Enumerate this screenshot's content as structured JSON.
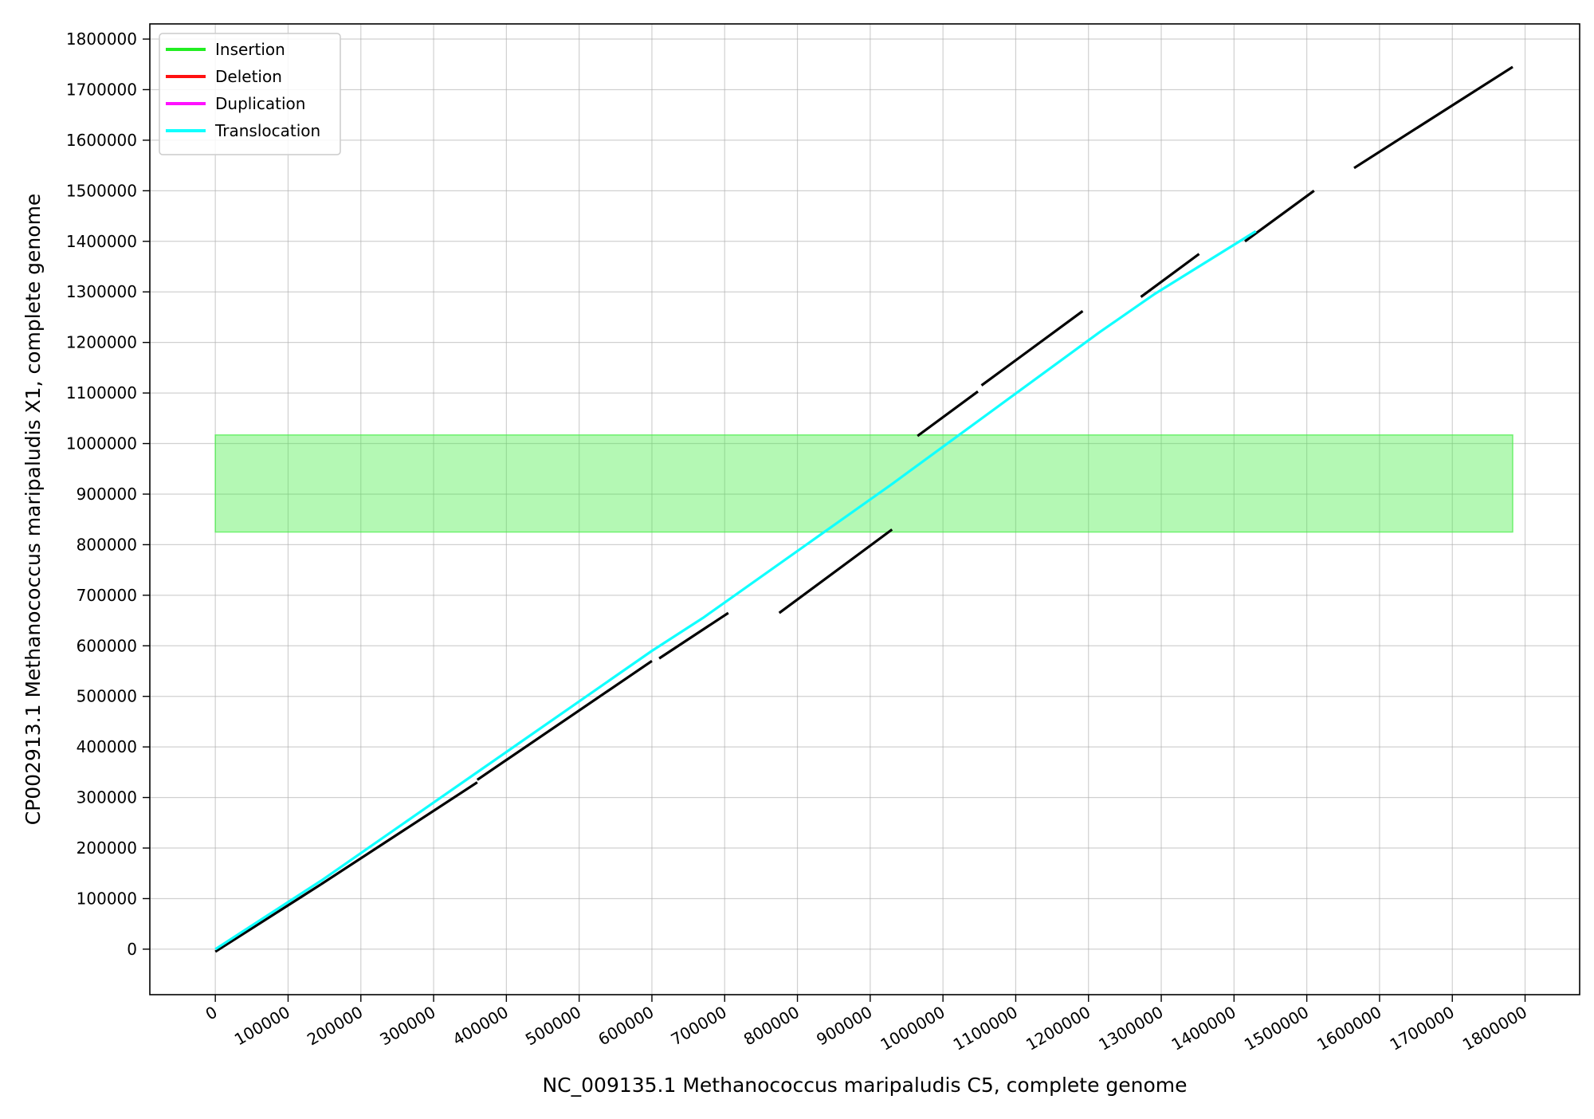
{
  "chart_data": {
    "type": "line",
    "title": "",
    "xlabel": "NC_009135.1 Methanococcus maripaludis C5, complete genome",
    "ylabel": "CP002913.1 Methanococcus maripaludis X1, complete genome",
    "xlim": [
      -90000,
      1875000
    ],
    "ylim": [
      -90000,
      1830000
    ],
    "x_ticks": [
      0,
      100000,
      200000,
      300000,
      400000,
      500000,
      600000,
      700000,
      800000,
      900000,
      1000000,
      1100000,
      1200000,
      1300000,
      1400000,
      1500000,
      1600000,
      1700000,
      1800000
    ],
    "y_ticks": [
      0,
      100000,
      200000,
      300000,
      400000,
      500000,
      600000,
      700000,
      800000,
      900000,
      1000000,
      1100000,
      1200000,
      1300000,
      1400000,
      1500000,
      1600000,
      1700000,
      1800000
    ],
    "grid": true,
    "legend_position": "top-left",
    "legend": [
      {
        "name": "Insertion",
        "color": "#22ee22"
      },
      {
        "name": "Deletion",
        "color": "#ff1111"
      },
      {
        "name": "Duplication",
        "color": "#ff11ff"
      },
      {
        "name": "Translocation",
        "color": "#11ffff"
      }
    ],
    "highlight_bands": [
      {
        "type": "Insertion",
        "x": [
          0,
          1783000
        ],
        "y": [
          825000,
          1017000
        ],
        "color": "#44ee44"
      }
    ],
    "alignment_segments": [
      {
        "x": [
          0,
          145000
        ],
        "y": [
          -5000,
          128000
        ]
      },
      {
        "x": [
          145000,
          360000
        ],
        "y": [
          128000,
          330000
        ]
      },
      {
        "x": [
          360000,
          600000
        ],
        "y": [
          335000,
          570000
        ]
      },
      {
        "x": [
          610000,
          705000
        ],
        "y": [
          575000,
          665000
        ]
      },
      {
        "x": [
          775000,
          930000
        ],
        "y": [
          665000,
          830000
        ]
      },
      {
        "x": [
          965000,
          1048000
        ],
        "y": [
          1015000,
          1103000
        ]
      },
      {
        "x": [
          1053000,
          1192000
        ],
        "y": [
          1115000,
          1262000
        ]
      },
      {
        "x": [
          1272000,
          1352000
        ],
        "y": [
          1290000,
          1375000
        ]
      },
      {
        "x": [
          1415000,
          1510000
        ],
        "y": [
          1400000,
          1500000
        ]
      },
      {
        "x": [
          1565000,
          1783000
        ],
        "y": [
          1545000,
          1745000
        ]
      }
    ],
    "alignment_color": "#000000",
    "translocation_line": {
      "x": [
        0,
        145000,
        360000,
        600000,
        670000,
        930000,
        1215000,
        1290000,
        1430000
      ],
      "y": [
        0,
        135000,
        350000,
        590000,
        655000,
        920000,
        1220000,
        1295000,
        1420000
      ],
      "color": "#11ffff"
    }
  }
}
